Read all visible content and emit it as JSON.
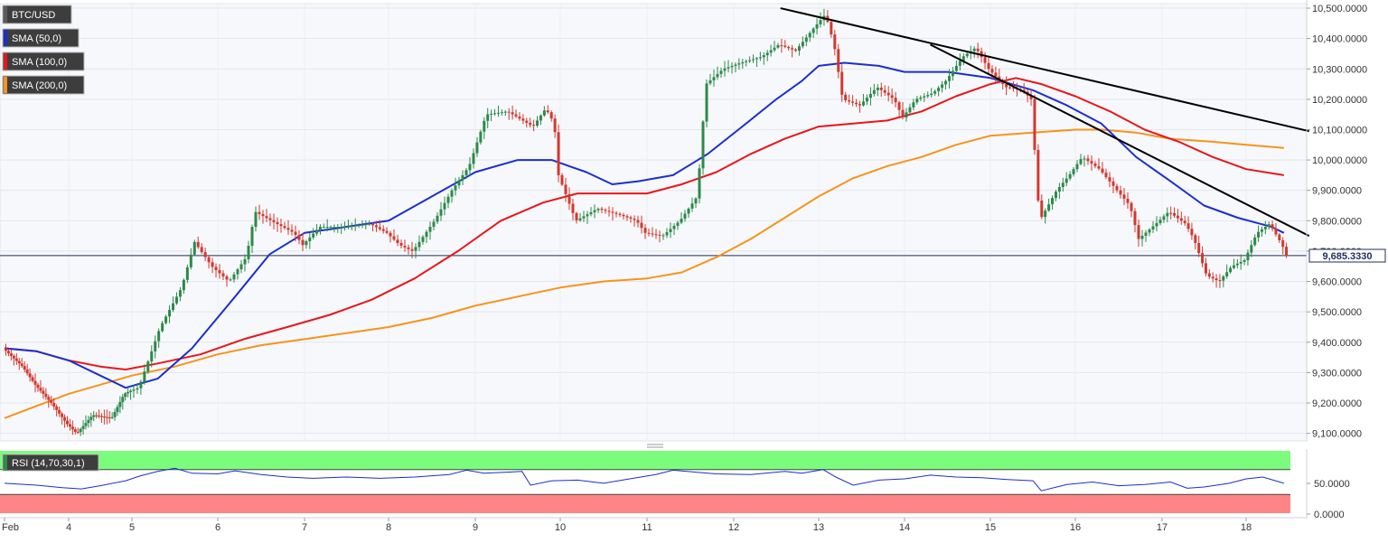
{
  "chart_data": {
    "type": "candlestick",
    "symbol": "BTC/USD",
    "legend": [
      {
        "label": "BTC/USD",
        "color": "#5a5a5a"
      },
      {
        "label": "SMA (50,0)",
        "color": "#1a2fd0"
      },
      {
        "label": "SMA (100,0)",
        "color": "#e8161b"
      },
      {
        "label": "SMA (200,0)",
        "color": "#f7931a"
      }
    ],
    "colors": {
      "up": "#2c8a4a",
      "down": "#d2392f",
      "sma50": "#1a2fd0",
      "sma100": "#e8161b",
      "sma200": "#f7931a",
      "trendline": "#000000",
      "price_line": "#1f2f5a"
    },
    "x_ticks": [
      "Feb",
      "4",
      "5",
      "6",
      "7",
      "8",
      "9",
      "10",
      "11",
      "12",
      "13",
      "14",
      "15",
      "16",
      "17",
      "18"
    ],
    "y_ticks": [
      "10,500.0000",
      "10,400.0000",
      "10,300.0000",
      "10,200.0000",
      "10,100.0000",
      "10,000.0000",
      "9,900.0000",
      "9,800.0000",
      "9,700.0000",
      "9,600.0000",
      "9,500.0000",
      "9,400.0000",
      "9,300.0000",
      "9,200.0000",
      "9,100.0000"
    ],
    "ylim": [
      9075,
      10515
    ],
    "current_price": 9685.333,
    "current_price_label": "9,685.3330",
    "candle_anchors": [
      [
        0.0,
        9380
      ],
      [
        0.3,
        9320
      ],
      [
        0.5,
        9260
      ],
      [
        0.75,
        9200
      ],
      [
        1.0,
        9130
      ],
      [
        1.15,
        9100
      ],
      [
        1.4,
        9160
      ],
      [
        1.7,
        9150
      ],
      [
        1.9,
        9230
      ],
      [
        2.1,
        9250
      ],
      [
        2.35,
        9450
      ],
      [
        2.6,
        9580
      ],
      [
        2.75,
        9730
      ],
      [
        2.95,
        9650
      ],
      [
        3.15,
        9600
      ],
      [
        3.35,
        9680
      ],
      [
        3.45,
        9830
      ],
      [
        3.7,
        9790
      ],
      [
        3.9,
        9760
      ],
      [
        4.0,
        9720
      ],
      [
        4.2,
        9780
      ],
      [
        4.5,
        9780
      ],
      [
        4.8,
        9790
      ],
      [
        5.0,
        9760
      ],
      [
        5.15,
        9720
      ],
      [
        5.3,
        9700
      ],
      [
        5.55,
        9800
      ],
      [
        5.75,
        9900
      ],
      [
        5.95,
        9980
      ],
      [
        6.15,
        10150
      ],
      [
        6.4,
        10160
      ],
      [
        6.7,
        10110
      ],
      [
        6.85,
        10170
      ],
      [
        6.95,
        10120
      ],
      [
        7.0,
        9950
      ],
      [
        7.2,
        9800
      ],
      [
        7.45,
        9840
      ],
      [
        7.7,
        9820
      ],
      [
        7.9,
        9800
      ],
      [
        8.0,
        9760
      ],
      [
        8.2,
        9750
      ],
      [
        8.4,
        9800
      ],
      [
        8.6,
        9880
      ],
      [
        8.7,
        10250
      ],
      [
        8.9,
        10300
      ],
      [
        9.1,
        10320
      ],
      [
        9.35,
        10340
      ],
      [
        9.55,
        10380
      ],
      [
        9.75,
        10360
      ],
      [
        9.95,
        10430
      ],
      [
        10.1,
        10480
      ],
      [
        10.2,
        10380
      ],
      [
        10.3,
        10200
      ],
      [
        10.5,
        10180
      ],
      [
        10.7,
        10240
      ],
      [
        10.9,
        10200
      ],
      [
        11.0,
        10140
      ],
      [
        11.15,
        10200
      ],
      [
        11.35,
        10220
      ],
      [
        11.5,
        10260
      ],
      [
        11.7,
        10340
      ],
      [
        11.85,
        10370
      ],
      [
        12.0,
        10300
      ],
      [
        12.2,
        10240
      ],
      [
        12.4,
        10230
      ],
      [
        12.5,
        10200
      ],
      [
        12.6,
        9800
      ],
      [
        12.8,
        9900
      ],
      [
        12.95,
        9950
      ],
      [
        13.1,
        10010
      ],
      [
        13.3,
        9970
      ],
      [
        13.5,
        9900
      ],
      [
        13.65,
        9850
      ],
      [
        13.75,
        9740
      ],
      [
        13.95,
        9790
      ],
      [
        14.1,
        9830
      ],
      [
        14.3,
        9790
      ],
      [
        14.4,
        9740
      ],
      [
        14.55,
        9620
      ],
      [
        14.7,
        9600
      ],
      [
        14.85,
        9650
      ],
      [
        15.0,
        9670
      ],
      [
        15.15,
        9760
      ],
      [
        15.3,
        9790
      ],
      [
        15.45,
        9720
      ],
      [
        15.5,
        9685
      ]
    ],
    "sma50": [
      [
        0.0,
        9380
      ],
      [
        0.5,
        9370
      ],
      [
        1.0,
        9340
      ],
      [
        1.5,
        9290
      ],
      [
        1.9,
        9250
      ],
      [
        2.3,
        9280
      ],
      [
        2.7,
        9380
      ],
      [
        3.2,
        9550
      ],
      [
        3.6,
        9690
      ],
      [
        4.0,
        9760
      ],
      [
        4.5,
        9780
      ],
      [
        5.0,
        9800
      ],
      [
        5.5,
        9880
      ],
      [
        6.0,
        9960
      ],
      [
        6.5,
        10000
      ],
      [
        6.9,
        10000
      ],
      [
        7.3,
        9960
      ],
      [
        7.6,
        9920
      ],
      [
        7.9,
        9930
      ],
      [
        8.3,
        9950
      ],
      [
        8.7,
        10020
      ],
      [
        9.1,
        10110
      ],
      [
        9.5,
        10200
      ],
      [
        9.8,
        10260
      ],
      [
        10.0,
        10310
      ],
      [
        10.3,
        10320
      ],
      [
        10.7,
        10310
      ],
      [
        11.0,
        10290
      ],
      [
        11.5,
        10290
      ],
      [
        12.0,
        10270
      ],
      [
        12.5,
        10230
      ],
      [
        12.9,
        10180
      ],
      [
        13.3,
        10120
      ],
      [
        13.7,
        10010
      ],
      [
        14.1,
        9930
      ],
      [
        14.5,
        9850
      ],
      [
        14.9,
        9810
      ],
      [
        15.3,
        9780
      ],
      [
        15.45,
        9760
      ]
    ],
    "sma100": [
      [
        0.0,
        9380
      ],
      [
        0.5,
        9370
      ],
      [
        1.0,
        9340
      ],
      [
        1.5,
        9320
      ],
      [
        1.9,
        9310
      ],
      [
        2.3,
        9330
      ],
      [
        2.8,
        9360
      ],
      [
        3.3,
        9410
      ],
      [
        3.8,
        9450
      ],
      [
        4.3,
        9490
      ],
      [
        4.8,
        9540
      ],
      [
        5.3,
        9610
      ],
      [
        5.8,
        9700
      ],
      [
        6.3,
        9800
      ],
      [
        6.8,
        9860
      ],
      [
        7.2,
        9890
      ],
      [
        7.6,
        9890
      ],
      [
        8.0,
        9890
      ],
      [
        8.4,
        9920
      ],
      [
        8.8,
        9960
      ],
      [
        9.2,
        10020
      ],
      [
        9.6,
        10070
      ],
      [
        10.0,
        10110
      ],
      [
        10.4,
        10120
      ],
      [
        10.8,
        10130
      ],
      [
        11.2,
        10160
      ],
      [
        11.6,
        10210
      ],
      [
        12.0,
        10250
      ],
      [
        12.3,
        10270
      ],
      [
        12.6,
        10250
      ],
      [
        13.0,
        10210
      ],
      [
        13.4,
        10160
      ],
      [
        13.8,
        10100
      ],
      [
        14.2,
        10060
      ],
      [
        14.6,
        10010
      ],
      [
        15.0,
        9970
      ],
      [
        15.45,
        9950
      ]
    ],
    "sma200": [
      [
        0.0,
        9150
      ],
      [
        0.5,
        9190
      ],
      [
        1.0,
        9230
      ],
      [
        1.5,
        9260
      ],
      [
        2.0,
        9290
      ],
      [
        2.5,
        9320
      ],
      [
        3.0,
        9360
      ],
      [
        3.5,
        9390
      ],
      [
        4.0,
        9410
      ],
      [
        4.5,
        9430
      ],
      [
        5.0,
        9450
      ],
      [
        5.5,
        9480
      ],
      [
        6.0,
        9520
      ],
      [
        6.5,
        9550
      ],
      [
        7.0,
        9580
      ],
      [
        7.5,
        9600
      ],
      [
        8.0,
        9610
      ],
      [
        8.4,
        9630
      ],
      [
        8.8,
        9680
      ],
      [
        9.2,
        9740
      ],
      [
        9.6,
        9810
      ],
      [
        10.0,
        9880
      ],
      [
        10.4,
        9940
      ],
      [
        10.8,
        9980
      ],
      [
        11.2,
        10010
      ],
      [
        11.6,
        10050
      ],
      [
        12.0,
        10080
      ],
      [
        12.5,
        10090
      ],
      [
        13.0,
        10100
      ],
      [
        13.3,
        10100
      ],
      [
        13.7,
        10090
      ],
      [
        14.1,
        10070
      ],
      [
        14.6,
        10060
      ],
      [
        15.0,
        10050
      ],
      [
        15.45,
        10040
      ]
    ],
    "trendlines": [
      [
        [
          9.55,
          10500
        ],
        [
          15.75,
          10095
        ]
      ],
      [
        [
          11.3,
          10380
        ],
        [
          15.75,
          9750
        ]
      ]
    ],
    "rsi": {
      "label": "RSI (14,70,30,1)",
      "level_label": "50.0000",
      "y_ticks": [
        "50.0000",
        "0.0000"
      ],
      "ylim": [
        0,
        100
      ],
      "overbought": 70,
      "oversold": 30,
      "values": [
        [
          0.0,
          48
        ],
        [
          0.5,
          45
        ],
        [
          0.9,
          41
        ],
        [
          1.2,
          39
        ],
        [
          1.5,
          44
        ],
        [
          1.9,
          52
        ],
        [
          2.1,
          60
        ],
        [
          2.3,
          67
        ],
        [
          2.5,
          72
        ],
        [
          2.7,
          64
        ],
        [
          3.0,
          63
        ],
        [
          3.2,
          68
        ],
        [
          3.5,
          62
        ],
        [
          3.8,
          58
        ],
        [
          4.1,
          56
        ],
        [
          4.5,
          58
        ],
        [
          4.9,
          56
        ],
        [
          5.3,
          58
        ],
        [
          5.7,
          62
        ],
        [
          5.9,
          69
        ],
        [
          6.1,
          64
        ],
        [
          6.4,
          66
        ],
        [
          6.55,
          67
        ],
        [
          6.65,
          45
        ],
        [
          6.9,
          52
        ],
        [
          7.2,
          53
        ],
        [
          7.5,
          48
        ],
        [
          7.8,
          55
        ],
        [
          8.1,
          62
        ],
        [
          8.3,
          69
        ],
        [
          8.55,
          66
        ],
        [
          8.8,
          63
        ],
        [
          9.2,
          62
        ],
        [
          9.6,
          67
        ],
        [
          9.8,
          64
        ],
        [
          10.05,
          70
        ],
        [
          10.2,
          58
        ],
        [
          10.4,
          45
        ],
        [
          10.7,
          53
        ],
        [
          11.0,
          55
        ],
        [
          11.3,
          61
        ],
        [
          11.6,
          58
        ],
        [
          11.9,
          57
        ],
        [
          12.2,
          54
        ],
        [
          12.5,
          52
        ],
        [
          12.6,
          36
        ],
        [
          12.9,
          46
        ],
        [
          13.2,
          50
        ],
        [
          13.5,
          44
        ],
        [
          13.8,
          46
        ],
        [
          14.1,
          50
        ],
        [
          14.3,
          40
        ],
        [
          14.5,
          42
        ],
        [
          14.8,
          48
        ],
        [
          15.0,
          55
        ],
        [
          15.2,
          58
        ],
        [
          15.45,
          48
        ]
      ]
    }
  }
}
